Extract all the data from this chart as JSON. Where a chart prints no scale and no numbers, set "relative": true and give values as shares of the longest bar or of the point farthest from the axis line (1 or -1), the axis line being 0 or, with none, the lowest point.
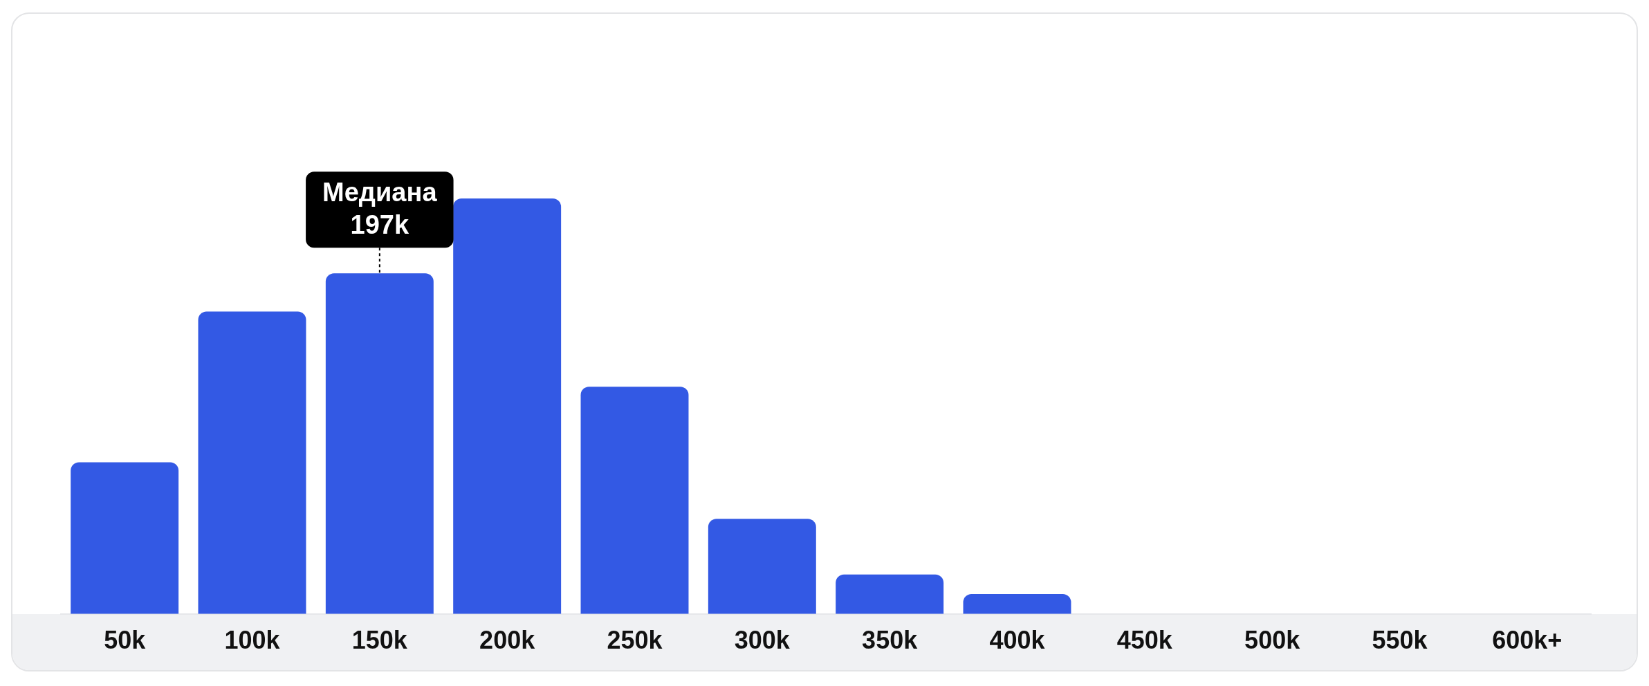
{
  "chart_data": {
    "type": "bar",
    "categories": [
      "50k",
      "100k",
      "150k",
      "200k",
      "250k",
      "300k",
      "350k",
      "400k",
      "450k",
      "500k",
      "550k",
      "600k+"
    ],
    "values": [
      0.365,
      0.728,
      0.82,
      1,
      0.547,
      0.229,
      0.095,
      0.048,
      0,
      0,
      0,
      0
    ],
    "color": "#3359e4",
    "relative": true,
    "annotations": [
      {
        "text": "Медиана\n197k",
        "x": "150k",
        "y": 0.82
      }
    ]
  }
}
